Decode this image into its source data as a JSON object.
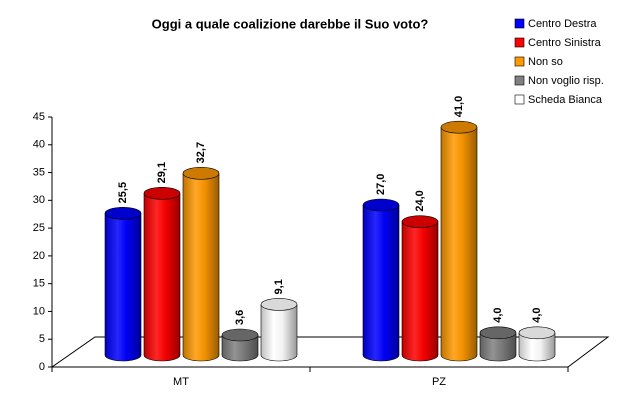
{
  "chart_data": {
    "type": "bar3d",
    "title": "Oggi a quale coalizione darebbe il Suo voto?",
    "categories": [
      "MT",
      "PZ"
    ],
    "series": [
      {
        "name": "Centro Destra",
        "color": "#0000ff",
        "values": [
          25.5,
          27.0
        ],
        "value_labels": [
          "25,5",
          "27,0"
        ]
      },
      {
        "name": "Centro Sinistra",
        "color": "#ff0000",
        "values": [
          29.1,
          24.0
        ],
        "value_labels": [
          "29,1",
          "24,0"
        ]
      },
      {
        "name": "Non so",
        "color": "#ff9900",
        "values": [
          32.7,
          41.0
        ],
        "value_labels": [
          "32,7",
          "41,0"
        ]
      },
      {
        "name": "Non voglio risp.",
        "color": "#808080",
        "values": [
          3.6,
          4.0
        ],
        "value_labels": [
          "3,6",
          "4,0"
        ]
      },
      {
        "name": "Scheda Bianca",
        "color": "#ffffff",
        "values": [
          9.1,
          4.0
        ],
        "value_labels": [
          "9,1",
          "4,0"
        ]
      }
    ],
    "ylim": [
      0,
      45
    ],
    "yticks": [
      0,
      5,
      10,
      15,
      20,
      25,
      30,
      35,
      40,
      45
    ],
    "legend": "right",
    "grid": false
  }
}
